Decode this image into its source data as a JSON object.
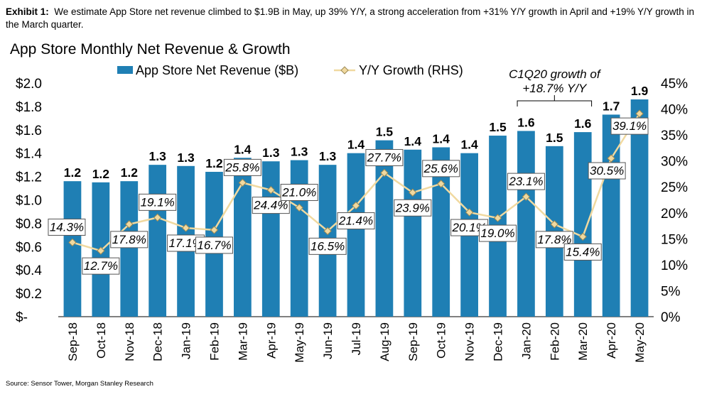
{
  "exhibit": {
    "label": "Exhibit 1:",
    "text": "We estimate App Store net revenue climbed to $1.9B in May, up 39% Y/Y, a strong acceleration from +31% Y/Y growth in April and +19% Y/Y growth in the March quarter."
  },
  "source": "Source: Sensor Tower, Morgan Stanley Research",
  "colors": {
    "bar": "#1f7fb4",
    "line": "#f0d9a0",
    "marker_fill": "#f0d9a0",
    "marker_stroke": "#9c8a55"
  },
  "chart_data": {
    "type": "bar",
    "title": "App Store Monthly Net Revenue & Growth",
    "categories": [
      "Sep-18",
      "Oct-18",
      "Nov-18",
      "Dec-18",
      "Jan-19",
      "Feb-19",
      "Mar-19",
      "Apr-19",
      "May-19",
      "Jun-19",
      "Jul-19",
      "Aug-19",
      "Sep-19",
      "Oct-19",
      "Nov-19",
      "Dec-19",
      "Jan-20",
      "Feb-20",
      "Mar-20",
      "Apr-20",
      "May-20"
    ],
    "series": [
      {
        "name": "App Store Net Revenue ($B)",
        "type": "bar",
        "axis": "left",
        "values": [
          1.16,
          1.15,
          1.16,
          1.3,
          1.29,
          1.24,
          1.36,
          1.33,
          1.34,
          1.3,
          1.4,
          1.51,
          1.43,
          1.45,
          1.4,
          1.55,
          1.59,
          1.46,
          1.58,
          1.73,
          1.86
        ],
        "labels": [
          "1.2",
          "1.2",
          "1.2",
          "1.3",
          "1.3",
          "1.2",
          "1.4",
          "1.3",
          "1.3",
          "1.3",
          "1.4",
          "1.5",
          "1.4",
          "1.4",
          "1.4",
          "1.5",
          "1.6",
          "1.5",
          "1.6",
          "1.7",
          "1.9"
        ]
      },
      {
        "name": "Y/Y Growth (RHS)",
        "type": "line",
        "axis": "right",
        "values": [
          14.3,
          12.7,
          17.8,
          19.1,
          17.1,
          16.7,
          25.8,
          24.4,
          21.0,
          16.5,
          21.4,
          27.7,
          23.9,
          25.6,
          20.1,
          19.0,
          23.1,
          17.8,
          15.4,
          30.5,
          39.1
        ],
        "labels": [
          "14.3%",
          "12.7%",
          "17.8%",
          "19.1%",
          "17.1%",
          "16.7%",
          "25.8%",
          "24.4%",
          "21.0%",
          "16.5%",
          "21.4%",
          "27.7%",
          "23.9%",
          "25.6%",
          "20.1%",
          "19.0%",
          "23.1%",
          "17.8%",
          "15.4%",
          "30.5%",
          "39.1%"
        ]
      }
    ],
    "y_left": {
      "min": 0,
      "max": 2.0,
      "ticks": [
        "$-",
        "$0.2",
        "$0.4",
        "$0.6",
        "$0.8",
        "$1.0",
        "$1.2",
        "$1.4",
        "$1.6",
        "$1.8",
        "$2.0"
      ]
    },
    "y_right": {
      "min": 0,
      "max": 45,
      "ticks": [
        "0%",
        "5%",
        "10%",
        "15%",
        "20%",
        "25%",
        "30%",
        "35%",
        "40%",
        "45%"
      ]
    },
    "legend_position": "top",
    "annotation": {
      "line1": "C1Q20 growth of",
      "line2": "+18.7% Y/Y",
      "from_category": "Jan-20",
      "to_category": "Mar-20"
    },
    "grid": false
  }
}
